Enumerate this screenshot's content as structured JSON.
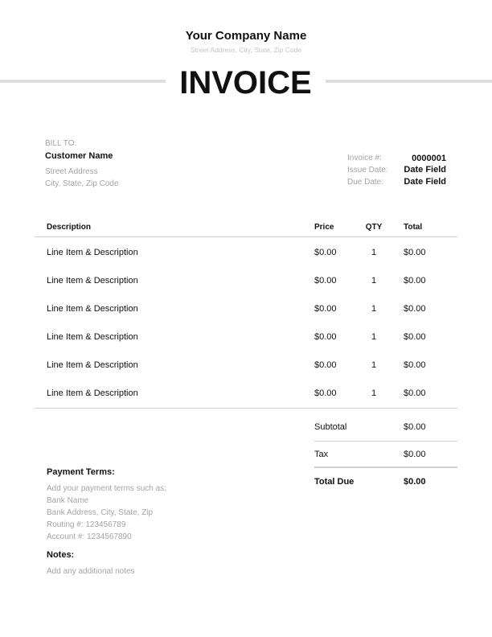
{
  "company": {
    "name": "Your Company Name",
    "address": "Street Address, City, State, Zip Code"
  },
  "title": "INVOICE",
  "bill_to": {
    "label": "BILL TO:",
    "name": "Customer Name",
    "street": "Street Address",
    "city": "City, State, Zip Code"
  },
  "meta": [
    {
      "label": "Invoice #:",
      "value": "0000001"
    },
    {
      "label": "Issue Date:",
      "value": "Date Field"
    },
    {
      "label": "Due Date:",
      "value": "Date Field"
    }
  ],
  "table": {
    "headers": {
      "description": "Description",
      "price": "Price",
      "qty": "QTY",
      "total": "Total"
    },
    "rows": [
      {
        "description": "Line Item & Description",
        "price": "$0.00",
        "qty": "1",
        "total": "$0.00"
      },
      {
        "description": "Line Item & Description",
        "price": "$0.00",
        "qty": "1",
        "total": "$0.00"
      },
      {
        "description": "Line Item & Description",
        "price": "$0.00",
        "qty": "1",
        "total": "$0.00"
      },
      {
        "description": "Line Item & Description",
        "price": "$0.00",
        "qty": "1",
        "total": "$0.00"
      },
      {
        "description": "Line Item & Description",
        "price": "$0.00",
        "qty": "1",
        "total": "$0.00"
      },
      {
        "description": "Line Item & Description",
        "price": "$0.00",
        "qty": "1",
        "total": "$0.00"
      }
    ]
  },
  "totals": {
    "subtotal_label": "Subtotal",
    "subtotal": "$0.00",
    "tax_label": "Tax",
    "tax": "$0.00",
    "total_label": "Total Due",
    "total": "$0.00"
  },
  "payment_terms": {
    "heading": "Payment Terms:",
    "lines": [
      "Add your payment terms such as:",
      "Bank Name",
      "Bank Address, City, State, Zip",
      "Routing #: 123456789",
      "Account #: 1234567890"
    ]
  },
  "notes": {
    "heading": "Notes:",
    "text": "Add any additional notes"
  }
}
